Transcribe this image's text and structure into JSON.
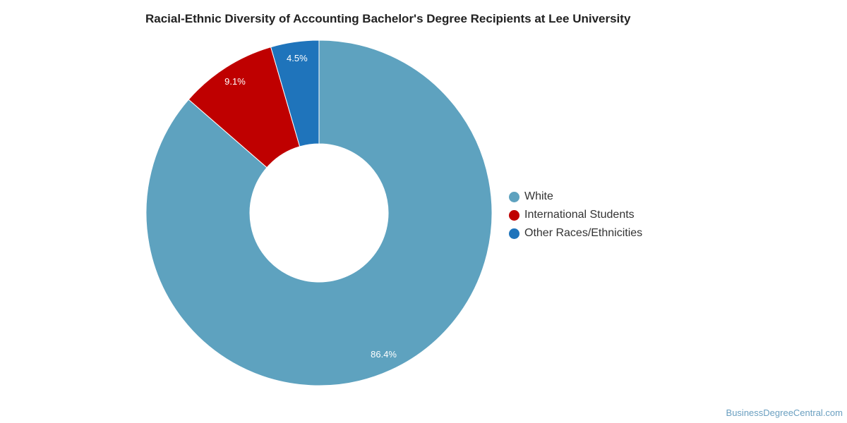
{
  "chart_data": {
    "type": "pie",
    "title": "Racial-Ethnic Diversity of Accounting Bachelor's Degree Recipients at Lee University",
    "slices": [
      {
        "label": "White",
        "value": 86.4,
        "display": "86.4%",
        "color": "#5ea2bf"
      },
      {
        "label": "International Students",
        "value": 9.1,
        "display": "9.1%",
        "color": "#bf0000"
      },
      {
        "label": "Other Races/Ethnicities",
        "value": 4.5,
        "display": "4.5%",
        "color": "#1f74bb"
      }
    ],
    "legend_position": "right",
    "donut": true
  },
  "credit": "BusinessDegreeCentral.com"
}
